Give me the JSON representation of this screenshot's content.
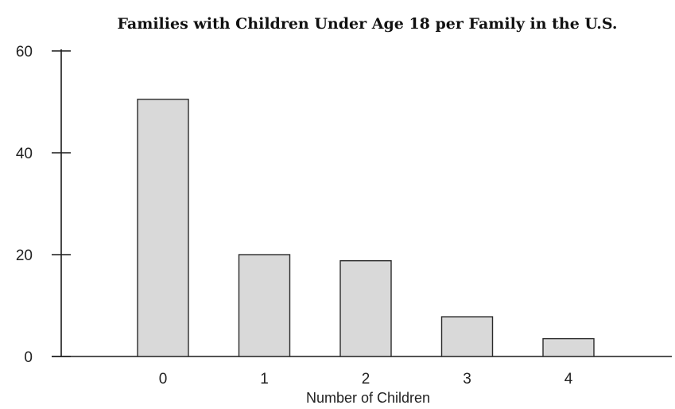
{
  "chart_data": {
    "type": "bar",
    "title": "Families with Children Under Age 18 per Family in the U.S.",
    "xlabel": "Number of Children",
    "ylabel": "",
    "categories": [
      "0",
      "1",
      "2",
      "3",
      "4"
    ],
    "values": [
      50.5,
      20,
      18.8,
      7.8,
      3.5
    ],
    "ylim": [
      0,
      60
    ],
    "yticks": [
      "0",
      "20",
      "40",
      "60"
    ],
    "grid": false,
    "bar_fill_color": "#d9d9d9",
    "bar_edge_color": "#2a2a2a"
  }
}
